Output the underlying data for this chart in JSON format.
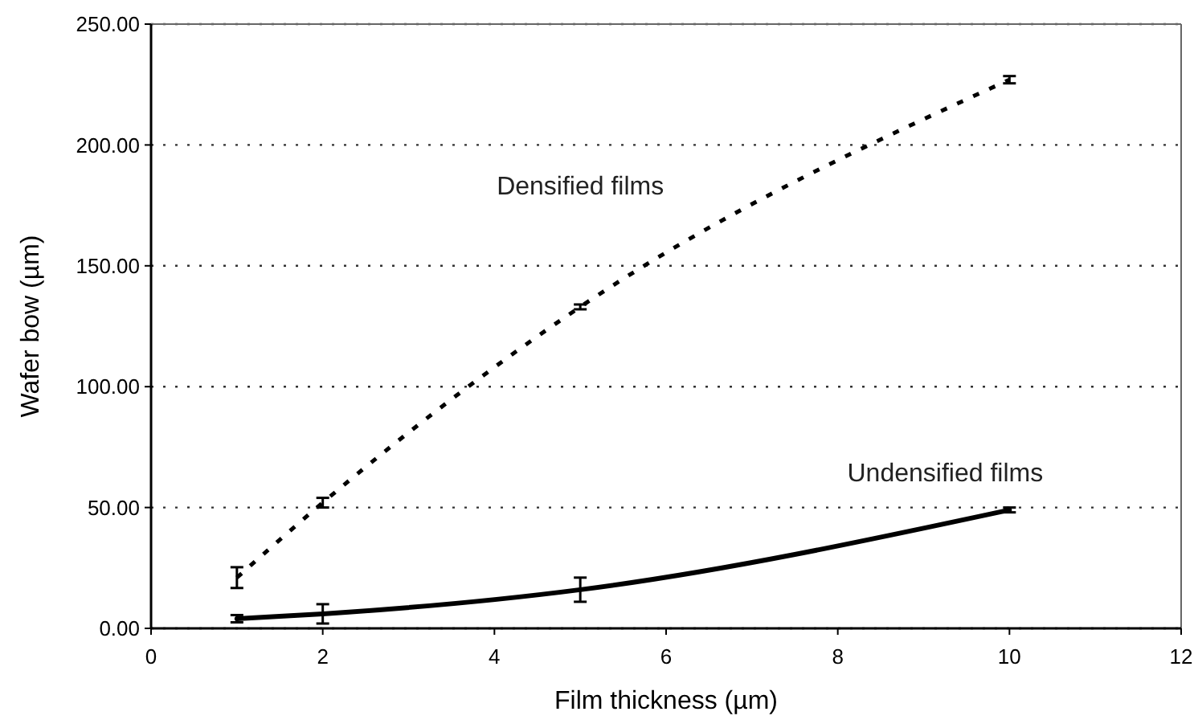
{
  "chart_data": {
    "type": "line",
    "xlabel": "Film thickness (µm)",
    "ylabel": "Wafer bow (µm)",
    "xlim": [
      0,
      12
    ],
    "xticks": [
      0,
      2,
      4,
      6,
      8,
      10,
      12
    ],
    "ylim": [
      0,
      250
    ],
    "yticks": [
      {
        "value": 0,
        "label": "0.00"
      },
      {
        "value": 50,
        "label": "50.00"
      },
      {
        "value": 100,
        "label": "100.00"
      },
      {
        "value": 150,
        "label": "150.00"
      },
      {
        "value": 200,
        "label": "200.00"
      },
      {
        "value": 250,
        "label": "250.00"
      }
    ],
    "grid": "y",
    "marker": "none",
    "x": [
      1,
      2,
      5,
      10
    ],
    "series": [
      {
        "name": "Densified films",
        "color": "#000000",
        "line_style": "dashed",
        "values": [
          21,
          52,
          133,
          227
        ],
        "errors": [
          4.3,
          2,
          1,
          1.5
        ]
      },
      {
        "name": "Undensified films",
        "color": "#000000",
        "line_style": "solid",
        "values": [
          4,
          6,
          16,
          49
        ],
        "errors": [
          1.5,
          4,
          5,
          1
        ]
      }
    ]
  }
}
